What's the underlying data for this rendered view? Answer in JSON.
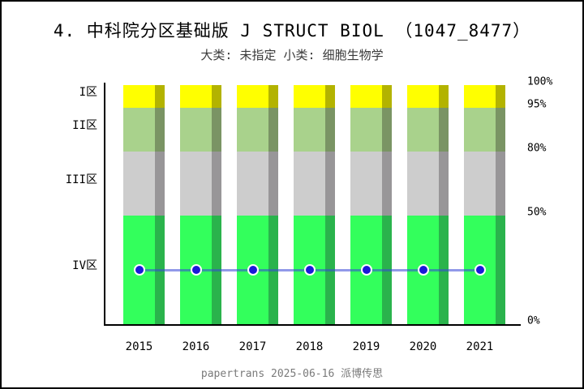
{
  "header": {
    "title": "4. 中科院分区基础版 J STRUCT BIOL （1047_8477）",
    "subtitle": "大类: 未指定 小类: 细胞生物学"
  },
  "footer": {
    "text": "papertrans 2025-06-16 派博传思"
  },
  "chart_data": {
    "type": "bar",
    "subtype": "stacked-percentile-bands-with-line-markers",
    "title": "4. 中科院分区基础版 J STRUCT BIOL （1047_8477）",
    "subtitle": "大类: 未指定 小类: 细胞生物学",
    "categories": [
      "2015",
      "2016",
      "2017",
      "2018",
      "2019",
      "2020",
      "2021"
    ],
    "y_axis_ticks": [
      "100%",
      "95%",
      "80%",
      "50%",
      "0%"
    ],
    "ylim": [
      "0%",
      "100%"
    ],
    "grid": "off",
    "legend": "none",
    "zones": [
      {
        "label": "I区",
        "range_pct": [
          95,
          100
        ],
        "color": "#FFFF00",
        "shadow_color": "#B3B300",
        "height_frac": 0.095
      },
      {
        "label": "II区",
        "range_pct": [
          80,
          95
        ],
        "color": "#A9D28C",
        "shadow_color": "#7A9464",
        "height_frac": 0.183
      },
      {
        "label": "III区",
        "range_pct": [
          50,
          80
        ],
        "color": "#CDCDCD",
        "shadow_color": "#989698",
        "height_frac": 0.268
      },
      {
        "label": "IV区",
        "range_pct": [
          0,
          50
        ],
        "color": "#33FF5C",
        "shadow_color": "#2AB34C",
        "height_frac": 0.454
      }
    ],
    "series": [
      {
        "name": "journal-partition-position",
        "type": "line",
        "zone": "IV区",
        "values_pct": [
          25,
          25,
          25,
          25,
          25,
          25,
          25
        ],
        "line_color": "rgba(55,70,215,0.55)",
        "marker_color": "#1A1AD8",
        "marker_edge_color": "#FFFFFF"
      }
    ],
    "colors": {
      "axis": "#000000",
      "background": "#FFFFFF",
      "border": "#000000",
      "footer_text": "#7A7A7A"
    }
  }
}
